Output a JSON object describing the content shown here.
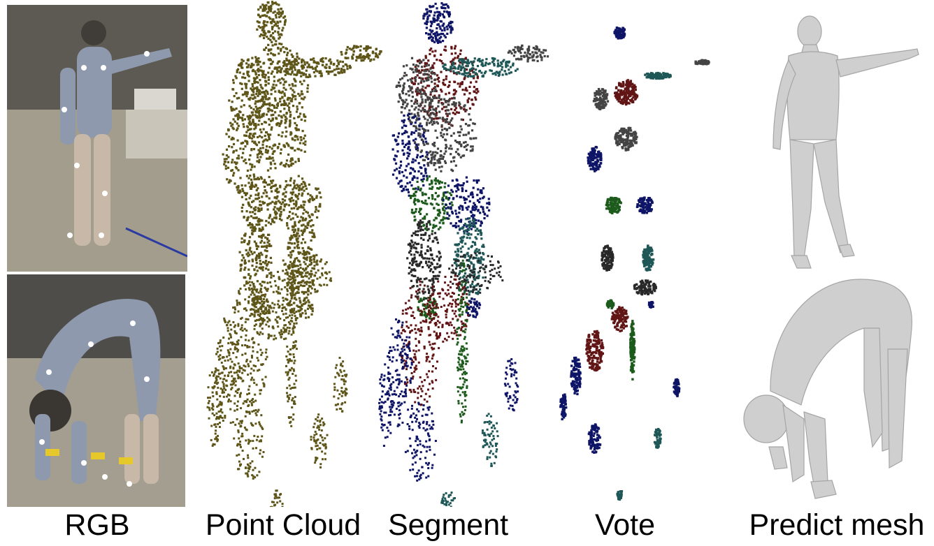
{
  "figure": {
    "columns": [
      {
        "id": "rgb",
        "label": "RGB"
      },
      {
        "id": "cloud",
        "label": "Point Cloud"
      },
      {
        "id": "seg",
        "label": "Segment"
      },
      {
        "id": "vote",
        "label": "Vote"
      },
      {
        "id": "mesh",
        "label": "Predict mesh"
      }
    ],
    "rows": [
      "standing-pose",
      "bending-pose"
    ]
  },
  "colors": {
    "point_cloud": "#5e5518",
    "segments": [
      "#0e1466",
      "#611515",
      "#1d5b1d",
      "#444444",
      "#1f5757",
      "#282828"
    ],
    "mesh": "#cfcfcf",
    "suit": "#8f99ad",
    "marker": "#ffffff"
  }
}
